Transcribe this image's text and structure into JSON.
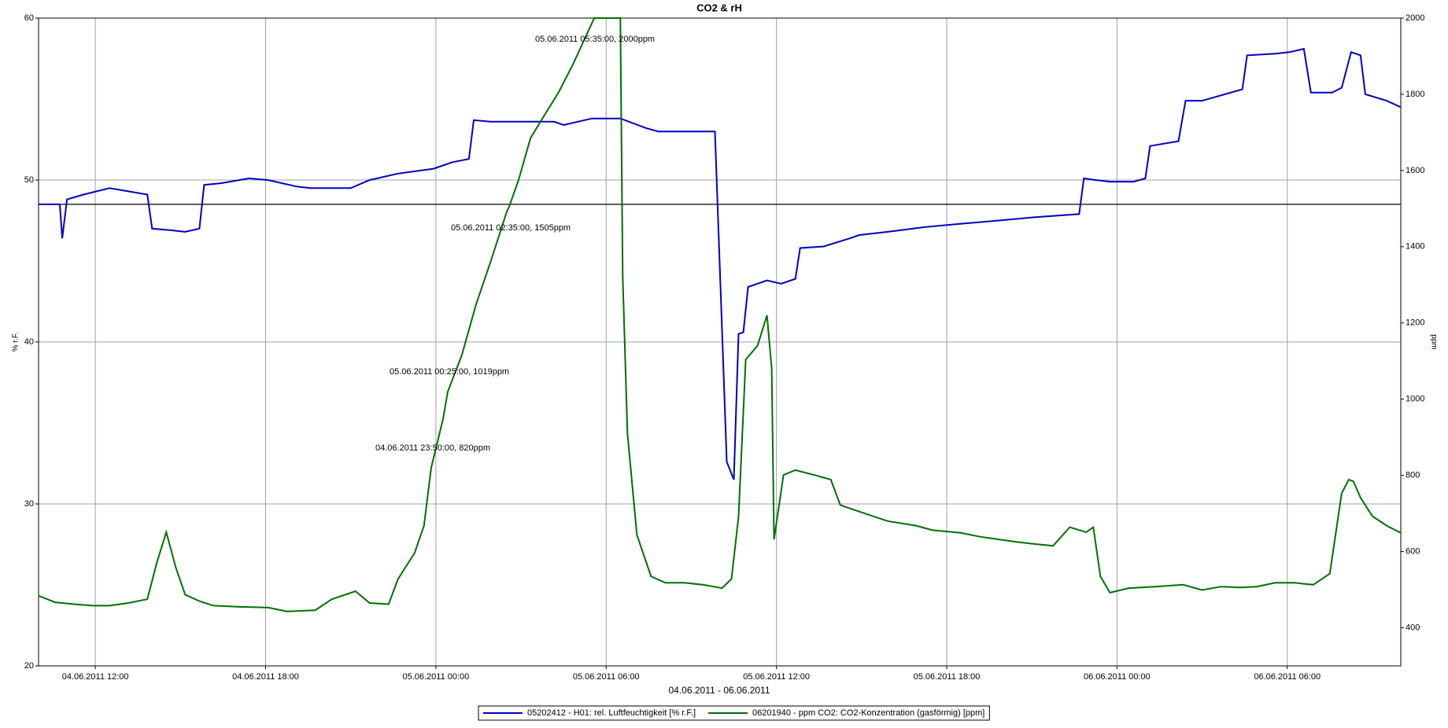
{
  "chart_data": {
    "type": "line",
    "title": "CO2 & rH",
    "x_label": "04.06.2011 - 06.06.2011",
    "y_label": "% r.F.",
    "y2_label": "ppm",
    "xlim": [
      "04.06.2011 10:00",
      "06.06.2011 10:00"
    ],
    "xticks": [
      "04.06.2011 12:00",
      "04.06.2011 18:00",
      "05.06.2011 00:00",
      "05.06.2011 06:00",
      "05.06.2011 12:00",
      "05.06.2011 18:00",
      "06.06.2011 00:00",
      "06.06.2011 06:00"
    ],
    "ylim": [
      20,
      60
    ],
    "yticks": [
      20,
      30,
      40,
      50,
      60
    ],
    "y2lim": [
      300,
      2000
    ],
    "y2ticks": [
      400,
      600,
      800,
      1000,
      1200,
      1400,
      1600,
      1800,
      2000
    ],
    "grid": true,
    "reference_line": {
      "value": 48.5,
      "axis": "y",
      "color": "#000000"
    },
    "legend": "bottom",
    "series": [
      {
        "name": "05202412 - H01: rel. Luftfeuchtigkeit [% r.F.]",
        "color": "#0000c0",
        "axis": "y",
        "x": [
          "04.06.2011 10:00",
          "04.06.2011 10:35",
          "04.06.2011 10:45",
          "04.06.2011 10:50",
          "04.06.2011 11:00",
          "04.06.2011 11:35",
          "04.06.2011 12:30",
          "04.06.2011 13:10",
          "04.06.2011 13:50",
          "04.06.2011 14:00",
          "04.06.2011 14:40",
          "04.06.2011 15:10",
          "04.06.2011 15:40",
          "04.06.2011 15:50",
          "04.06.2011 16:25",
          "04.06.2011 17:05",
          "04.06.2011 17:25",
          "04.06.2011 18:05",
          "04.06.2011 19:05",
          "04.06.2011 19:35",
          "04.06.2011 21:00",
          "04.06.2011 21:40",
          "04.06.2011 22:40",
          "04.06.2011 23:55",
          "05.06.2011 00:35",
          "05.06.2011 01:10",
          "05.06.2011 01:20",
          "05.06.2011 01:55",
          "05.06.2011 03:10",
          "05.06.2011 04:10",
          "05.06.2011 04:30",
          "05.06.2011 05:30",
          "05.06.2011 06:30",
          "05.06.2011 07:25",
          "05.06.2011 07:50",
          "05.06.2011 09:05",
          "05.06.2011 09:50",
          "05.06.2011 10:15",
          "05.06.2011 10:30",
          "05.06.2011 10:40",
          "05.06.2011 10:50",
          "05.06.2011 11:00",
          "05.06.2011 11:40",
          "05.06.2011 12:10",
          "05.06.2011 12:40",
          "05.06.2011 12:50",
          "05.06.2011 13:40",
          "05.06.2011 14:35",
          "05.06.2011 14:55",
          "05.06.2011 15:55",
          "05.06.2011 17:15",
          "05.06.2011 18:30",
          "05.06.2011 19:50",
          "05.06.2011 21:05",
          "05.06.2011 22:40",
          "05.06.2011 22:50",
          "05.06.2011 23:15",
          "05.06.2011 23:45",
          "06.06.2011 00:35",
          "06.06.2011 01:00",
          "06.06.2011 01:10",
          "06.06.2011 02:10",
          "06.06.2011 02:25",
          "06.06.2011 03:00",
          "06.06.2011 04:25",
          "06.06.2011 04:35",
          "06.06.2011 05:35",
          "06.06.2011 06:05",
          "06.06.2011 06:35",
          "06.06.2011 06:50",
          "06.06.2011 07:35",
          "06.06.2011 07:55",
          "06.06.2011 08:15",
          "06.06.2011 08:35",
          "06.06.2011 08:45",
          "06.06.2011 09:30",
          "06.06.2011 10:00"
        ],
        "values": [
          48.5,
          48.5,
          48.5,
          46.4,
          48.8,
          49.1,
          49.5,
          49.3,
          49.1,
          47.0,
          46.9,
          46.8,
          47.0,
          49.7,
          49.8,
          50.0,
          50.1,
          50.0,
          49.6,
          49.5,
          49.5,
          50.0,
          50.4,
          50.7,
          51.1,
          51.3,
          53.7,
          53.6,
          53.6,
          53.6,
          53.4,
          53.8,
          53.8,
          53.2,
          53.0,
          53.0,
          53.0,
          32.6,
          31.5,
          40.5,
          40.6,
          43.4,
          43.8,
          43.6,
          43.9,
          45.8,
          45.9,
          46.4,
          46.6,
          46.8,
          47.1,
          47.3,
          47.5,
          47.7,
          47.9,
          50.1,
          50.0,
          49.9,
          49.9,
          50.1,
          52.1,
          52.4,
          54.9,
          54.9,
          55.6,
          57.7,
          57.8,
          57.9,
          58.1,
          55.4,
          55.4,
          55.7,
          57.9,
          57.7,
          55.3,
          54.9,
          54.5
        ]
      },
      {
        "name": "06201940 - ppm CO2: CO2-Konzentration (gasförmig) [ppm]",
        "color": "#007000",
        "axis": "y2",
        "x": [
          "04.06.2011 10:00",
          "04.06.2011 10:35",
          "04.06.2011 11:15",
          "04.06.2011 11:55",
          "04.06.2011 12:30",
          "04.06.2011 13:10",
          "04.06.2011 13:50",
          "04.06.2011 14:10",
          "04.06.2011 14:30",
          "04.06.2011 14:50",
          "04.06.2011 15:10",
          "04.06.2011 15:40",
          "04.06.2011 16:10",
          "04.06.2011 17:05",
          "04.06.2011 18:05",
          "04.06.2011 18:45",
          "04.06.2011 19:45",
          "04.06.2011 20:20",
          "04.06.2011 21:10",
          "04.06.2011 21:40",
          "04.06.2011 22:20",
          "04.06.2011 22:40",
          "04.06.2011 23:15",
          "04.06.2011 23:35",
          "04.06.2011 23:50",
          "05.06.2011 00:15",
          "05.06.2011 00:25",
          "05.06.2011 00:55",
          "05.06.2011 01:25",
          "05.06.2011 01:55",
          "05.06.2011 02:30",
          "05.06.2011 02:35",
          "05.06.2011 02:55",
          "05.06.2011 03:20",
          "05.06.2011 03:50",
          "05.06.2011 04:20",
          "05.06.2011 04:50",
          "05.06.2011 05:35",
          "05.06.2011 06:30",
          "05.06.2011 06:35",
          "05.06.2011 06:45",
          "05.06.2011 07:05",
          "05.06.2011 07:35",
          "05.06.2011 08:05",
          "05.06.2011 08:45",
          "05.06.2011 09:25",
          "05.06.2011 10:05",
          "05.06.2011 10:25",
          "05.06.2011 10:40",
          "05.06.2011 10:55",
          "05.06.2011 11:20",
          "05.06.2011 11:40",
          "05.06.2011 11:50",
          "05.06.2011 11:55",
          "05.06.2011 12:15",
          "05.06.2011 12:40",
          "05.06.2011 13:20",
          "05.06.2011 13:55",
          "05.06.2011 14:15",
          "05.06.2011 14:55",
          "05.06.2011 15:55",
          "05.06.2011 16:55",
          "05.06.2011 17:30",
          "05.06.2011 18:30",
          "05.06.2011 19:10",
          "05.06.2011 19:50",
          "05.06.2011 20:30",
          "05.06.2011 21:05",
          "05.06.2011 21:45",
          "05.06.2011 22:20",
          "05.06.2011 22:55",
          "05.06.2011 23:10",
          "05.06.2011 23:25",
          "05.06.2011 23:45",
          "06.06.2011 00:25",
          "06.06.2011 01:20",
          "06.06.2011 02:20",
          "06.06.2011 03:00",
          "06.06.2011 03:40",
          "06.06.2011 04:20",
          "06.06.2011 04:55",
          "06.06.2011 05:35",
          "06.06.2011 06:15",
          "06.06.2011 06:55",
          "06.06.2011 07:30",
          "06.06.2011 07:55",
          "06.06.2011 08:10",
          "06.06.2011 08:20",
          "06.06.2011 08:35",
          "06.06.2011 09:00",
          "06.06.2011 09:30",
          "06.06.2011 10:00"
        ],
        "values": [
          484,
          467,
          462,
          458,
          458,
          465,
          475,
          571,
          651,
          559,
          487,
          470,
          458,
          455,
          453,
          443,
          446,
          475,
          496,
          465,
          462,
          528,
          596,
          668,
          820,
          947,
          1019,
          1116,
          1249,
          1358,
          1492,
          1505,
          1576,
          1685,
          1746,
          1806,
          1879,
          2000,
          2000,
          1322,
          910,
          644,
          535,
          518,
          518,
          513,
          504,
          528,
          692,
          1104,
          1140,
          1220,
          1080,
          632,
          801,
          814,
          801,
          789,
          722,
          705,
          680,
          668,
          656,
          649,
          639,
          632,
          625,
          620,
          615,
          664,
          651,
          664,
          535,
          492,
          504,
          508,
          513,
          499,
          508,
          506,
          508,
          518,
          518,
          513,
          542,
          753,
          789,
          784,
          741,
          693,
          668,
          649
        ]
      }
    ],
    "annotations": [
      "05.06.2011 05:35:00, 2000ppm",
      "05.06.2011 02:35:00, 1505ppm",
      "05.06.2011 00:25:00, 1019ppm",
      "04.06.2011 23:50:00, 820ppm"
    ]
  }
}
